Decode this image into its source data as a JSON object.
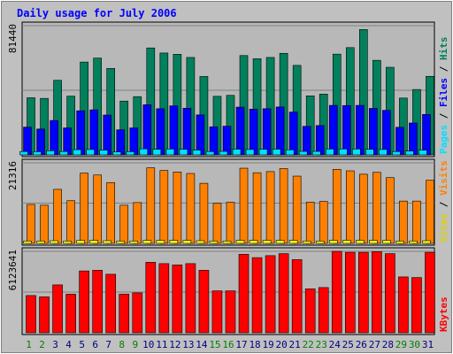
{
  "chart_data": {
    "type": "bar",
    "title": "Daily usage for July 2006",
    "categories": [
      "1",
      "2",
      "3",
      "4",
      "5",
      "6",
      "7",
      "8",
      "9",
      "10",
      "11",
      "12",
      "13",
      "14",
      "15",
      "16",
      "17",
      "18",
      "19",
      "20",
      "21",
      "22",
      "23",
      "24",
      "25",
      "26",
      "27",
      "28",
      "29",
      "30",
      "31"
    ],
    "weekend_days": [
      "1",
      "2",
      "8",
      "9",
      "15",
      "16",
      "22",
      "23",
      "29",
      "30"
    ],
    "panels": [
      {
        "id": "top",
        "max_label": "81440",
        "ylim": [
          0,
          81440
        ],
        "legend": [
          "Pages",
          "Files",
          "Hits"
        ],
        "series": [
          {
            "name": "Hits",
            "color": "#00805c",
            "values": [
              36000,
              35600,
              47000,
              37000,
              58500,
              61000,
              54500,
              33900,
              36700,
              67400,
              64200,
              63400,
              61400,
              49400,
              36900,
              37500,
              62600,
              60600,
              61400,
              64000,
              56400,
              37200,
              38300,
              63500,
              67600,
              79000,
              59600,
              55200,
              35800,
              41200,
              49500
            ]
          },
          {
            "name": "Files",
            "color": "#0000ff",
            "values": [
              17500,
              16300,
              21700,
              17000,
              27800,
              28400,
              25100,
              15800,
              17000,
              31600,
              29100,
              30900,
              29400,
              25200,
              17700,
              18100,
              30100,
              28800,
              29100,
              30200,
              27000,
              18000,
              18500,
              31200,
              31100,
              31200,
              29300,
              28100,
              17400,
              20100,
              25500
            ]
          },
          {
            "name": "Pages",
            "color": "#00e0ff",
            "values": [
              2100,
              2000,
              2600,
              2100,
              3300,
              3400,
              3000,
              1900,
              2000,
              3800,
              3500,
              3700,
              3500,
              3000,
              2100,
              2200,
              3600,
              3400,
              3500,
              3600,
              3200,
              2200,
              2200,
              3700,
              3700,
              3700,
              3500,
              3400,
              2100,
              2400,
              3000
            ]
          }
        ]
      },
      {
        "id": "mid",
        "max_label": "21316",
        "ylim": [
          0,
          21316
        ],
        "legend": [
          "Sites",
          "Visits"
        ],
        "series": [
          {
            "name": "Visits",
            "color": "#ff8000",
            "values": [
              10300,
              10100,
              14300,
              11300,
              18600,
              18100,
              16100,
              10100,
              10800,
              20000,
              19300,
              18900,
              18500,
              15900,
              10600,
              10900,
              19900,
              18700,
              19000,
              19800,
              17800,
              10900,
              11100,
              19600,
              19200,
              18300,
              18800,
              17400,
              11200,
              11200,
              16700
            ]
          },
          {
            "name": "Sites",
            "color": "#ffff00",
            "values": [
              600,
              600,
              700,
              600,
              800,
              800,
              700,
              600,
              600,
              800,
              800,
              800,
              800,
              700,
              600,
              600,
              800,
              800,
              800,
              800,
              800,
              600,
              600,
              800,
              800,
              800,
              800,
              800,
              600,
              600,
              700
            ]
          }
        ]
      },
      {
        "id": "bot",
        "max_label": "6123641",
        "ylim": [
          0,
          6123641
        ],
        "legend": [
          "KBytes"
        ],
        "series": [
          {
            "name": "KBytes",
            "color": "#ff0000",
            "values": [
              2800000,
              2700000,
              3600000,
              2900000,
              4650000,
              4700000,
              4400000,
              2900000,
              3000000,
              5300000,
              5200000,
              5100000,
              5200000,
              4700000,
              3150000,
              3150000,
              5900000,
              5650000,
              5800000,
              5950000,
              5500000,
              3300000,
              3400000,
              6123641,
              6050000,
              6050000,
              6100000,
              5950000,
              4200000,
              4150000,
              6050000
            ]
          }
        ]
      }
    ],
    "colors": {
      "frame": "#c0c0c0",
      "plot": "#b8b8b8",
      "title": "#0000ff",
      "weekday_label": "#000080",
      "weekend_label": "#008000"
    }
  }
}
